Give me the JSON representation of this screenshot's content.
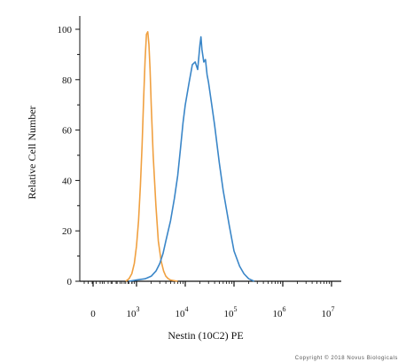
{
  "chart_data": {
    "type": "line",
    "xlabel": "Nestin (10C2) PE",
    "ylabel": "Relative Cell Number",
    "ylim": [
      0,
      100
    ],
    "x_scale": "log (biexponential display)",
    "x_ticks": [
      {
        "base": "0",
        "exp": ""
      },
      {
        "base": "10",
        "exp": "3"
      },
      {
        "base": "10",
        "exp": "4"
      },
      {
        "base": "10",
        "exp": "5"
      },
      {
        "base": "10",
        "exp": "6"
      },
      {
        "base": "10",
        "exp": "7"
      }
    ],
    "y_ticks": [
      "0",
      "20",
      "40",
      "60",
      "80",
      "100"
    ],
    "grid": false,
    "legend": "none",
    "series": [
      {
        "color": "#f0a040",
        "x": [
          600,
          700,
          800,
          900,
          1000,
          1100,
          1200,
          1300,
          1400,
          1500,
          1600,
          1700,
          1800,
          1900,
          2000,
          2200,
          2500,
          2800,
          3200,
          3600,
          4000,
          4500,
          5000,
          6000,
          7000
        ],
        "y": [
          0,
          1,
          3,
          7,
          14,
          24,
          38,
          54,
          72,
          88,
          98,
          99,
          94,
          84,
          70,
          50,
          30,
          16,
          8,
          4,
          2,
          1,
          0.5,
          0.2,
          0
        ]
      },
      {
        "color": "#3a86c8",
        "x": [
          700,
          1000,
          1500,
          2000,
          2500,
          3000,
          3500,
          4000,
          5000,
          6000,
          7000,
          8000,
          9000,
          10000,
          12000,
          14000,
          16000,
          18000,
          20000,
          21000,
          22000,
          24000,
          26000,
          28000,
          30000,
          35000,
          40000,
          50000,
          60000,
          80000,
          100000,
          130000,
          160000,
          200000,
          260000
        ],
        "y": [
          0,
          0.5,
          1,
          2,
          4,
          7,
          11,
          16,
          24,
          33,
          42,
          53,
          63,
          70,
          79,
          86,
          87,
          84,
          94,
          97,
          92,
          87,
          88,
          82,
          79,
          70,
          62,
          47,
          36,
          22,
          12,
          6,
          3,
          1,
          0
        ]
      }
    ]
  },
  "copyright": "Copyright © 2018 Novus Biologicals"
}
